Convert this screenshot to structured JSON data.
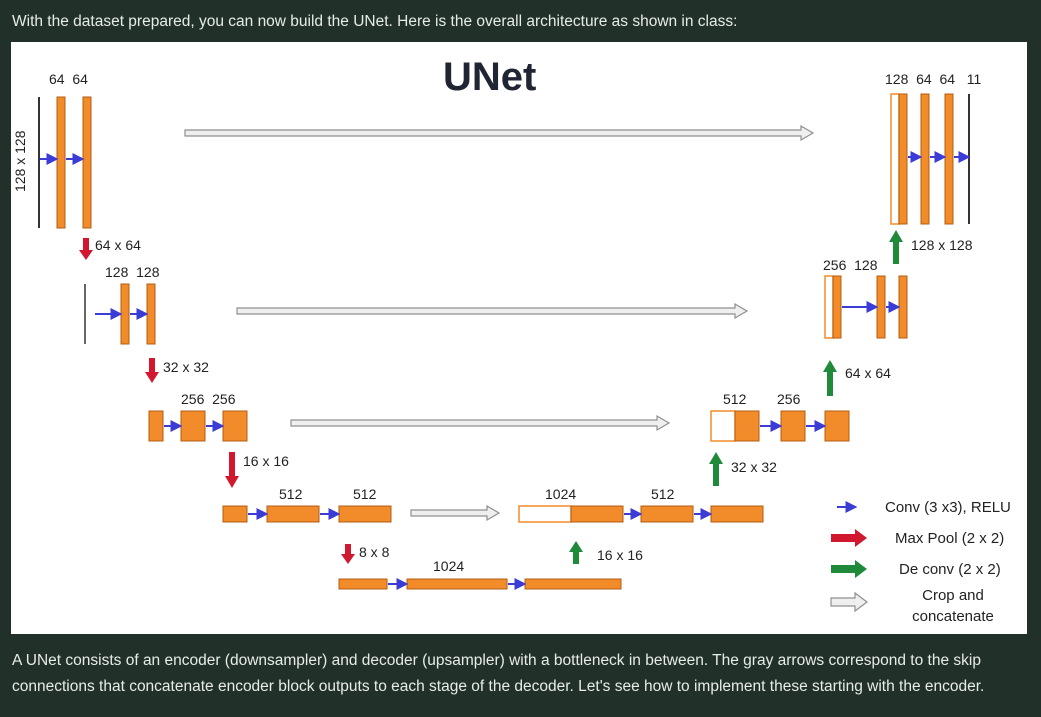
{
  "intro_text": "With the dataset prepared, you can now build the UNet. Here is the overall architecture as shown in class:",
  "outro_text": "A UNet consists of an encoder (downsampler) and decoder (upsampler) with a bottleneck in between. The gray arrows correspond to the skip connections that concatenate encoder block outputs to each stage of the decoder. Let's see how to implement these starting with the encoder.",
  "diagram": {
    "title": "UNet",
    "labels": {
      "l1_channels": "64  64",
      "l1_size": "128 x 128",
      "down1_size": "64 x 64",
      "l2_channels": "128  128",
      "down2_size": "32 x 32",
      "l3_channels": "256  256",
      "down3_size": "16 x 16",
      "l4_ch_a": "512",
      "l4_ch_b": "512",
      "down4_size": "8 x 8",
      "bottom_ch": "1024",
      "up4_size": "16 x 16",
      "d4_ch_a": "1024",
      "d4_ch_b": "512",
      "up3_size": "32 x 32",
      "d3_ch_a": "512",
      "d3_ch_b": "256",
      "up2_size": "64 x 64",
      "d2_channels": "256  128",
      "up1_size": "128 x 128",
      "d1_channels": "128  64  64   11"
    },
    "legend": {
      "conv": "Conv (3 x3), RELU",
      "pool": "Max Pool (2 x 2)",
      "deconv": "De conv (2 x 2)",
      "concat_line1": "Crop and",
      "concat_line2": "concatenate"
    },
    "colors": {
      "block": "#f28c2b",
      "block_border": "#b35d10",
      "conv_arrow": "#3b3bd6",
      "pool_arrow": "#d2182f",
      "deconv_arrow": "#1f8a3a",
      "skip_arrow": "#9a9a9a"
    }
  }
}
